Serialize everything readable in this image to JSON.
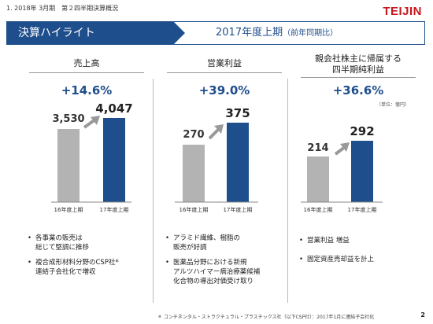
{
  "header": {
    "text": "1. 2018年 3月期　第２四半期決算概況",
    "logo": "TEIJIN"
  },
  "title": {
    "left": "決算ハイライト",
    "right": "2017年度上期",
    "right_sub": "（前年同期比）"
  },
  "unit_label": "（単位：億円）",
  "columns": [
    {
      "title_lines": [
        "売上高"
      ],
      "change": "+14.6%",
      "notes": [
        [
          "各事業の販売は",
          "総じて堅調に推移"
        ],
        [
          "複合成形材料分野のCSP社*",
          "連結子会社化で増収"
        ]
      ]
    },
    {
      "title_lines": [
        "営業利益"
      ],
      "change": "+39.0%",
      "notes": [
        [
          "アラミド繊維、樹脂の",
          "販売が好調"
        ],
        [
          "医薬品分野における新規",
          "アルツハイマー病治療薬候補",
          "化合物の導出対価受け取り"
        ]
      ]
    },
    {
      "title_lines": [
        "親会社株主に帰属する",
        "四半期純利益"
      ],
      "change": "+36.6%",
      "notes": [
        [
          "営業利益 増益"
        ],
        [
          "固定資産売却益を計上"
        ]
      ]
    }
  ],
  "chart_data": [
    {
      "type": "bar",
      "title": "売上高",
      "categories": [
        "16年度上期",
        "17年度上期"
      ],
      "values": [
        3530,
        4047
      ],
      "value_labels": [
        "3,530",
        "4,047"
      ]
    },
    {
      "type": "bar",
      "title": "営業利益",
      "categories": [
        "16年度上期",
        "17年度上期"
      ],
      "values": [
        270,
        375
      ],
      "value_labels": [
        "270",
        "375"
      ]
    },
    {
      "type": "bar",
      "title": "親会社株主に帰属する四半期純利益",
      "categories": [
        "16年度上期",
        "17年度上期"
      ],
      "values": [
        214,
        292
      ],
      "value_labels": [
        "214",
        "292"
      ],
      "unit": "億円"
    }
  ],
  "colors": {
    "accent": "#1f4e8c",
    "bar_prev": "#b3b3b3",
    "logo": "#c8161d"
  },
  "footnote": "＊ コンチネンタル・ストラクチュラル・プラスチックス社（以下CSP社）：2017年1月に連結子会社化",
  "page_number": "2"
}
